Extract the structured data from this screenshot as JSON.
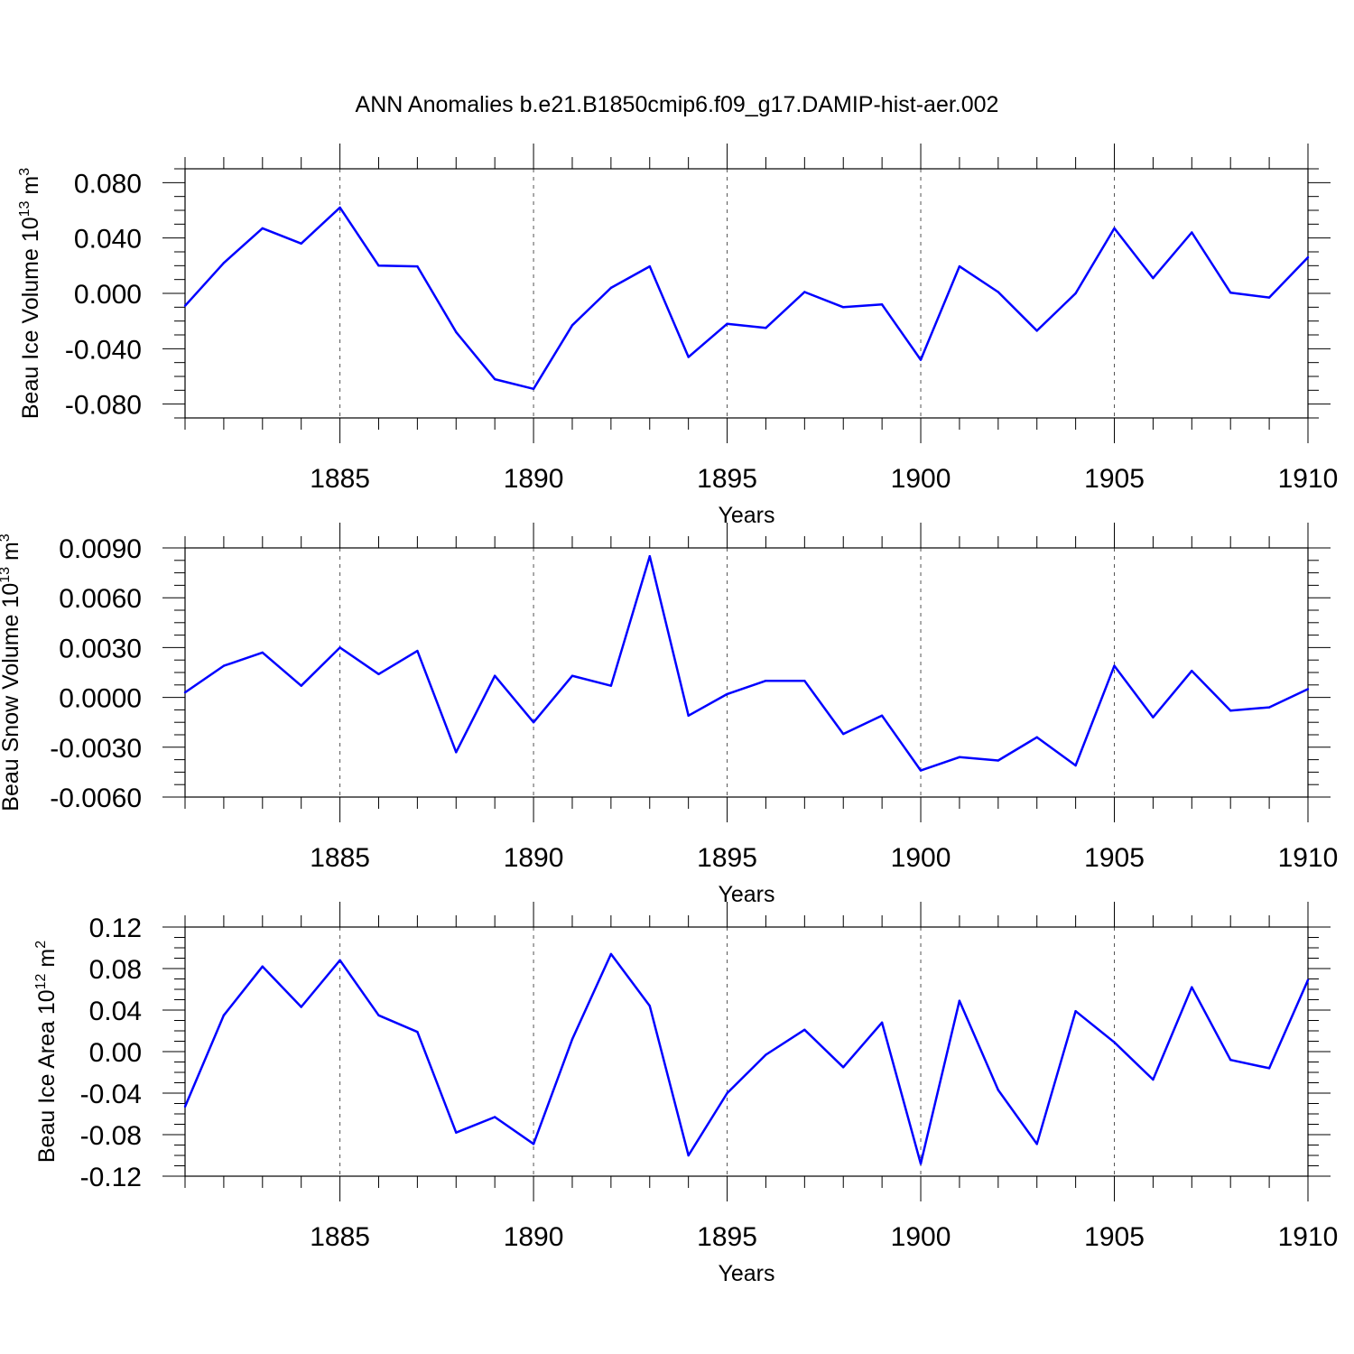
{
  "title": "ANN Anomalies b.e21.B1850cmip6.f09_g17.DAMIP-hist-aer.002",
  "line_color": "#0000ff",
  "chart_data": [
    {
      "type": "line",
      "ylabel": "Beau Ice Volume",
      "ylabel_unit_base": "10",
      "ylabel_unit_exp": "13",
      "ylabel_unit_sym": "m",
      "ylabel_unit_symexp": "3",
      "xlabel": "Years",
      "xlim": [
        1881,
        1910
      ],
      "ylim": [
        -0.09,
        0.09
      ],
      "xticks": [
        1885,
        1890,
        1895,
        1900,
        1905,
        1910
      ],
      "yticks": [
        0.08,
        0.04,
        0.0,
        -0.04,
        -0.08
      ],
      "ytick_labels": [
        "0.080",
        "0.040",
        "0.000",
        "-0.040",
        "-0.080"
      ],
      "grid": "x-major-dashed",
      "x": [
        1881,
        1882,
        1883,
        1884,
        1885,
        1886,
        1887,
        1888,
        1889,
        1890,
        1891,
        1892,
        1893,
        1894,
        1895,
        1896,
        1897,
        1898,
        1899,
        1900,
        1901,
        1902,
        1903,
        1904,
        1905,
        1906,
        1907,
        1908,
        1909,
        1910
      ],
      "series": [
        {
          "values": [
            -0.009,
            0.022,
            0.047,
            0.036,
            0.062,
            0.02,
            0.0195,
            -0.028,
            -0.062,
            -0.069,
            -0.023,
            0.004,
            0.0195,
            -0.046,
            -0.022,
            -0.025,
            0.001,
            -0.01,
            -0.008,
            -0.048,
            0.0195,
            0.001,
            -0.027,
            0.0,
            0.047,
            0.011,
            0.044,
            0.0005,
            -0.003,
            0.026
          ]
        }
      ]
    },
    {
      "type": "line",
      "ylabel": "Beau Snow Volume",
      "ylabel_unit_base": "10",
      "ylabel_unit_exp": "13",
      "ylabel_unit_sym": "m",
      "ylabel_unit_symexp": "3",
      "xlabel": "Years",
      "xlim": [
        1881,
        1910
      ],
      "ylim": [
        -0.006,
        0.009
      ],
      "xticks": [
        1885,
        1890,
        1895,
        1900,
        1905,
        1910
      ],
      "yticks": [
        0.009,
        0.006,
        0.003,
        0.0,
        -0.003,
        -0.006
      ],
      "ytick_labels": [
        "0.0090",
        "0.0060",
        "0.0030",
        "0.0000",
        "-0.0030",
        "-0.0060"
      ],
      "grid": "x-major-dashed",
      "x": [
        1881,
        1882,
        1883,
        1884,
        1885,
        1886,
        1887,
        1888,
        1889,
        1890,
        1891,
        1892,
        1893,
        1894,
        1895,
        1896,
        1897,
        1898,
        1899,
        1900,
        1901,
        1902,
        1903,
        1904,
        1905,
        1906,
        1907,
        1908,
        1909,
        1910
      ],
      "series": [
        {
          "values": [
            0.0003,
            0.0019,
            0.0027,
            0.0007,
            0.003,
            0.0014,
            0.0028,
            -0.0033,
            0.0013,
            -0.0015,
            0.0013,
            0.0007,
            0.0085,
            -0.0011,
            0.0002,
            0.001,
            0.001,
            -0.0022,
            -0.0011,
            -0.0044,
            -0.0036,
            -0.0038,
            -0.0024,
            -0.0041,
            0.0019,
            -0.0012,
            0.0016,
            -0.0008,
            -0.0006,
            0.0005
          ]
        }
      ]
    },
    {
      "type": "line",
      "ylabel": "Beau Ice Area",
      "ylabel_unit_base": "10",
      "ylabel_unit_exp": "12",
      "ylabel_unit_sym": "m",
      "ylabel_unit_symexp": "2",
      "xlabel": "Years",
      "xlim": [
        1881,
        1910
      ],
      "ylim": [
        -0.12,
        0.12
      ],
      "xticks": [
        1885,
        1890,
        1895,
        1900,
        1905,
        1910
      ],
      "yticks": [
        0.12,
        0.08,
        0.04,
        0.0,
        -0.04,
        -0.08,
        -0.12
      ],
      "ytick_labels": [
        "0.12",
        "0.08",
        "0.04",
        "0.00",
        "-0.04",
        "-0.08",
        "-0.12"
      ],
      "grid": "x-major-dashed",
      "x": [
        1881,
        1882,
        1883,
        1884,
        1885,
        1886,
        1887,
        1888,
        1889,
        1890,
        1891,
        1892,
        1893,
        1894,
        1895,
        1896,
        1897,
        1898,
        1899,
        1900,
        1901,
        1902,
        1903,
        1904,
        1905,
        1906,
        1907,
        1908,
        1909,
        1910
      ],
      "series": [
        {
          "values": [
            -0.053,
            0.035,
            0.082,
            0.043,
            0.088,
            0.035,
            0.019,
            -0.078,
            -0.063,
            -0.089,
            0.012,
            0.094,
            0.044,
            -0.1,
            -0.04,
            -0.003,
            0.021,
            -0.015,
            0.028,
            -0.108,
            0.049,
            -0.037,
            -0.089,
            0.039,
            0.009,
            -0.027,
            0.062,
            -0.008,
            -0.016,
            0.069
          ]
        }
      ]
    }
  ]
}
